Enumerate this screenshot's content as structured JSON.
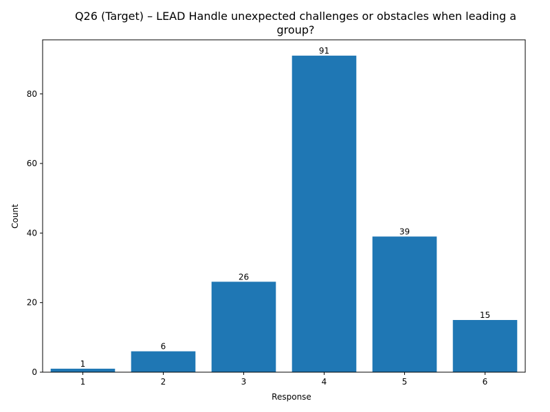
{
  "chart_data": {
    "type": "bar",
    "title_lines": [
      "Q26 (Target) – LEAD Handle unexpected challenges or obstacles when leading a",
      "group?"
    ],
    "xlabel": "Response",
    "ylabel": "Count",
    "categories": [
      "1",
      "2",
      "3",
      "4",
      "5",
      "6"
    ],
    "values": [
      1,
      6,
      26,
      91,
      39,
      15
    ],
    "data_labels": [
      "1",
      "6",
      "26",
      "91",
      "39",
      "15"
    ],
    "ylim": [
      0,
      95.55
    ],
    "yticks": [
      0,
      20,
      40,
      60,
      80
    ],
    "ytick_labels": [
      "0",
      "20",
      "40",
      "60",
      "80"
    ],
    "bar_color": "#1f77b4",
    "grid": false,
    "legend": "none"
  }
}
